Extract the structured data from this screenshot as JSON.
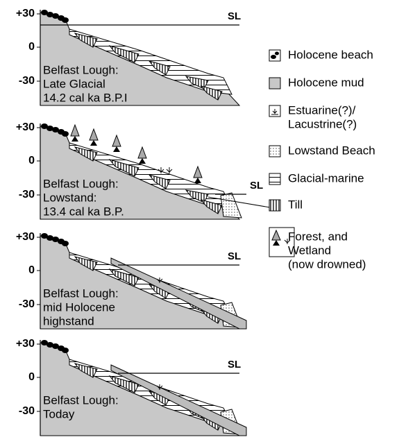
{
  "panels": [
    {
      "ticks": [
        "+30",
        "0",
        "-30"
      ],
      "sea_level": "SL",
      "label": [
        "Belfast Lough:",
        "Late Glacial",
        "14.2 cal  ka B.P.I"
      ]
    },
    {
      "ticks": [
        "+30",
        "0",
        "-30"
      ],
      "sea_level": "SL",
      "label": [
        "Belfast Lough:",
        "Lowstand:",
        "13.4 cal ka B.P."
      ]
    },
    {
      "ticks": [
        "+30",
        "0",
        "-30"
      ],
      "sea_level": "SL",
      "label": [
        "Belfast Lough:",
        "mid Holocene",
        "highstand"
      ]
    },
    {
      "ticks": [
        "+30",
        "0",
        "-30"
      ],
      "sea_level": "SL",
      "label": [
        "Belfast Lough:",
        "Today"
      ]
    }
  ],
  "legend": [
    {
      "label": [
        "Holocene beach"
      ]
    },
    {
      "label": [
        "Holocene mud"
      ]
    },
    {
      "label": [
        "Estuarine(?)/",
        "Lacustrine(?)"
      ]
    },
    {
      "label": [
        "Lowstand Beach"
      ]
    },
    {
      "label": [
        "Glacial-marine"
      ]
    },
    {
      "label": [
        "Till"
      ]
    },
    {
      "label": [
        "Forest, and",
        "Wetland",
        "(now drowned)"
      ]
    }
  ]
}
